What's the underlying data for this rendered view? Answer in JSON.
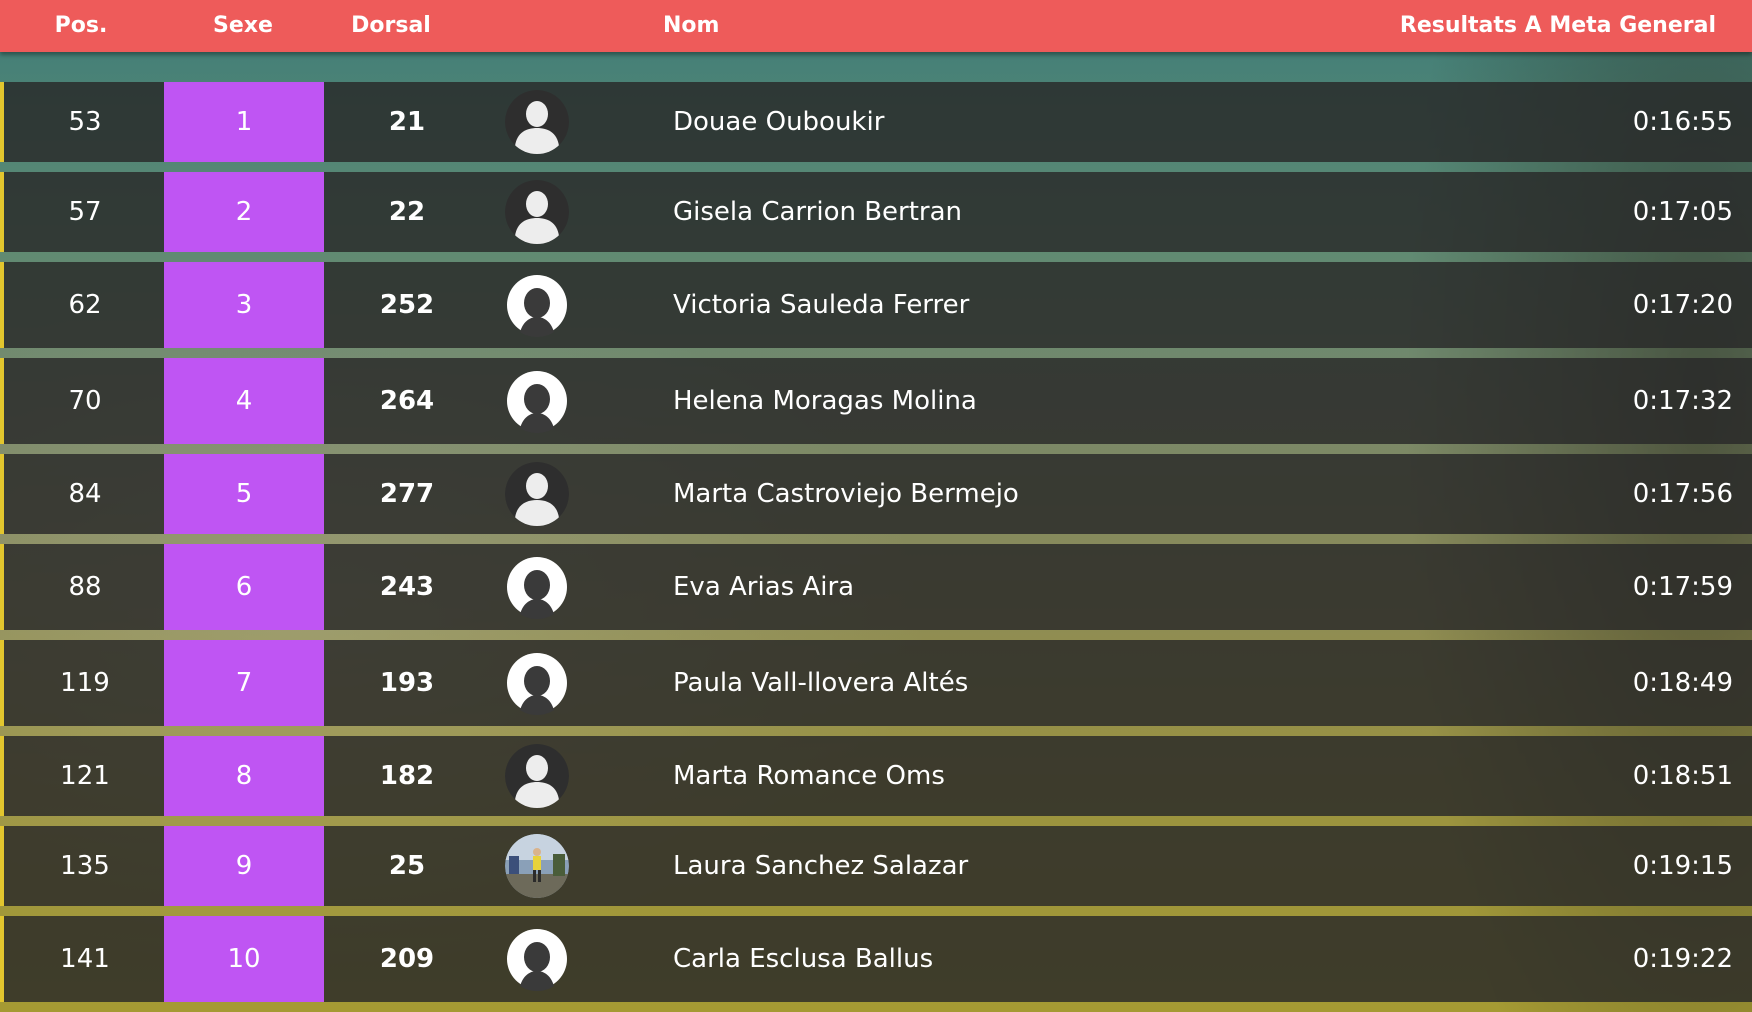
{
  "table": {
    "headers": {
      "pos": "Pos.",
      "sexe": "Sexe",
      "dorsal": "Dorsal",
      "nom": "Nom",
      "resultats": "Resultats A Meta General"
    },
    "rows": [
      {
        "pos": "53",
        "sexe": "1",
        "dorsal": "21",
        "avatar": "silhouette-dark-icon",
        "nom": "Douae Ouboukir",
        "temps": "0:16:55"
      },
      {
        "pos": "57",
        "sexe": "2",
        "dorsal": "22",
        "avatar": "silhouette-dark-icon",
        "nom": "Gisela Carrion Bertran",
        "temps": "0:17:05"
      },
      {
        "pos": "62",
        "sexe": "3",
        "dorsal": "252",
        "avatar": "silhouette-white-icon",
        "nom": "Victoria Sauleda Ferrer",
        "temps": "0:17:20"
      },
      {
        "pos": "70",
        "sexe": "4",
        "dorsal": "264",
        "avatar": "silhouette-white-icon",
        "nom": "Helena Moragas Molina",
        "temps": "0:17:32"
      },
      {
        "pos": "84",
        "sexe": "5",
        "dorsal": "277",
        "avatar": "silhouette-dark-icon",
        "nom": "Marta Castroviejo Bermejo",
        "temps": "0:17:56"
      },
      {
        "pos": "88",
        "sexe": "6",
        "dorsal": "243",
        "avatar": "silhouette-white-icon",
        "nom": "Eva Arias Aira",
        "temps": "0:17:59"
      },
      {
        "pos": "119",
        "sexe": "7",
        "dorsal": "193",
        "avatar": "silhouette-white-icon",
        "nom": "Paula Vall-llovera Altés",
        "temps": "0:18:49"
      },
      {
        "pos": "121",
        "sexe": "8",
        "dorsal": "182",
        "avatar": "silhouette-dark-icon",
        "nom": "Marta Romance Oms",
        "temps": "0:18:51"
      },
      {
        "pos": "135",
        "sexe": "9",
        "dorsal": "25",
        "avatar": "runner-photo-icon",
        "nom": "Laura Sanchez Salazar",
        "temps": "0:19:15"
      },
      {
        "pos": "141",
        "sexe": "10",
        "dorsal": "209",
        "avatar": "silhouette-white-icon",
        "nom": "Carla Esclusa Ballus",
        "temps": "0:19:22"
      }
    ]
  },
  "colors": {
    "header_bg": "#ee5b5a",
    "sexe_bg": "#bf55f3",
    "row_accent": "#e2c62e"
  }
}
